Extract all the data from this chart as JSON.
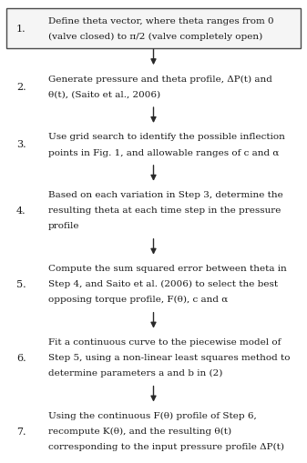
{
  "steps": [
    {
      "number": "1.",
      "lines": [
        [
          "Define theta vector, where theta ranges from 0"
        ],
        [
          "(valve closed) to π/2 (valve completely open)"
        ]
      ],
      "boxed": true,
      "n_lines": 2
    },
    {
      "number": "2.",
      "lines": [
        [
          "Generate pressure and theta profile, ΔP(t) and"
        ],
        [
          "θ(t), (Saito et al., 2006)"
        ]
      ],
      "boxed": false,
      "n_lines": 2
    },
    {
      "number": "3.",
      "lines": [
        [
          "Use grid search to identify the possible inflection"
        ],
        [
          "points in Fig. 1, and allowable ranges of c and α"
        ]
      ],
      "boxed": false,
      "n_lines": 2
    },
    {
      "number": "4.",
      "lines": [
        [
          "Based on each variation in Step 3, determine the"
        ],
        [
          "resulting theta at each time step in the pressure"
        ],
        [
          "profile"
        ]
      ],
      "boxed": false,
      "n_lines": 3
    },
    {
      "number": "5.",
      "lines": [
        [
          "Compute the sum squared error between theta in"
        ],
        [
          "Step 4, and Saito et al. (2006) to select the best"
        ],
        [
          "opposing torque profile, F(θ), c and α"
        ]
      ],
      "boxed": false,
      "n_lines": 3
    },
    {
      "number": "6.",
      "lines": [
        [
          "Fit a continuous curve to the piecewise model of"
        ],
        [
          "Step 5, using a non-linear least squares method to"
        ],
        [
          "determine parameters a and b in (2)"
        ]
      ],
      "boxed": false,
      "n_lines": 3
    },
    {
      "number": "7.",
      "lines": [
        [
          "Using the continuous F(θ) profile of Step 6,"
        ],
        [
          "recompute K(θ), and the resulting θ(t)"
        ],
        [
          "corresponding to the input pressure profile ΔP(t)"
        ]
      ],
      "boxed": false,
      "n_lines": 3
    }
  ],
  "italic_chars": [
    "ΔP(t)",
    "θ(t)",
    "c",
    "α",
    "F(θ)",
    "K(θ)",
    "a",
    "b"
  ],
  "background_color": "#ffffff",
  "box_edge_color": "#4a4a4a",
  "text_color": "#1a1a1a",
  "arrow_color": "#2a2a2a",
  "font_size": 7.5,
  "number_font_size": 8.0
}
